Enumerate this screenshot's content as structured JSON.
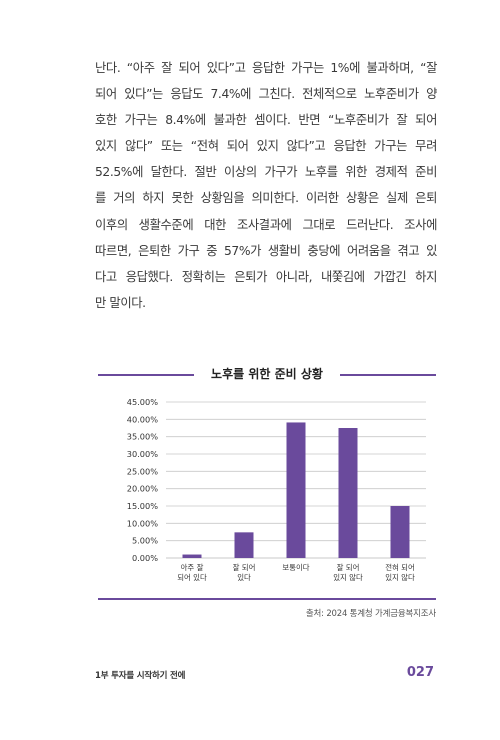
{
  "body": {
    "lines": [
      "난다. “아주 잘 되어 있다”고 응답한 가구는 1%에 불과하며, “잘",
      "되어 있다”는 응답도 7.4%에 그친다. 전체적으로 노후준비가 양",
      "호한 가구는 8.4%에 불과한 셈이다. 반면 “노후준비가 잘 되어",
      "있지 않다” 또는 “전혀 되어 있지 않다”고 응답한 가구는 무려",
      "52.5%에 달한다. 절반 이상의 가구가 노후를 위한 경제적 준비",
      "를 거의 하지 못한 상황임을 의미한다. 이러한 상황은 실제 은퇴",
      "이후의 생활수준에 대한 조사결과에 그대로 드러난다. 조사에",
      "따르면, 은퇴한 가구 중 57%가 생활비 충당에 어려움을 겪고 있",
      "다고 응답했다. 정확히는 은퇴가 아니라, 내쫓김에 가깝긴 하지",
      "만 말이다."
    ]
  },
  "chart_data": {
    "type": "bar",
    "title": "노후를 위한 준비 상황",
    "categories": [
      [
        "아주 잘",
        "되어 있다"
      ],
      [
        "잘 되어",
        "있다"
      ],
      [
        "보통이다"
      ],
      [
        "잘 되어",
        "있지 않다"
      ],
      [
        "전혀 되어",
        "있지 않다"
      ]
    ],
    "values": [
      1.0,
      7.4,
      39.1,
      37.5,
      15.0
    ],
    "ylim": [
      0,
      45
    ],
    "yticks": [
      0,
      5,
      10,
      15,
      20,
      25,
      30,
      35,
      40,
      45
    ],
    "ytick_labels": [
      "0.00%",
      "5.00%",
      "10.00%",
      "15.00%",
      "20.00%",
      "25.00%",
      "30.00%",
      "35.00%",
      "40.00%",
      "45.00%"
    ],
    "grid": true,
    "bar_color": "#6a4a9c",
    "grid_color": "#c8c8c8"
  },
  "source": "출처: 2024 통계청 가계금융복지조사",
  "footer": {
    "section": "1부 투자를 시작하기 전에",
    "page": "027"
  },
  "colors": {
    "accent": "#6a4a9c"
  }
}
